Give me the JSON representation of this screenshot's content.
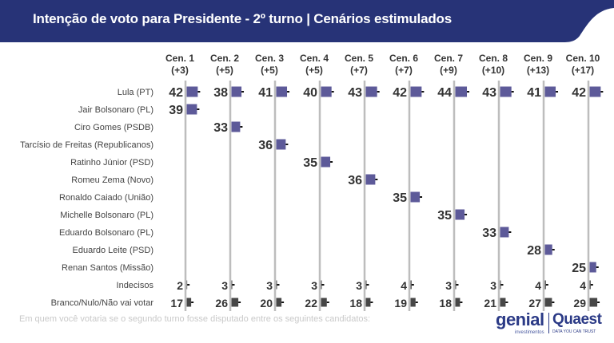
{
  "header": {
    "title": "Intenção de voto para Presidente - 2º turno | Cenários estimulados"
  },
  "footer": {
    "subtitle": "Em quem você votaria se o segundo turno fosse disputado entre os seguintes candidatos:",
    "logo_genial": "genial",
    "logo_genial_sub": "investimentos",
    "logo_quaest": "Quaest",
    "logo_quaest_sub": "DATA YOU CAN TRUST"
  },
  "colors": {
    "header": "#273377",
    "candidate_bar": "#5d5a99",
    "other_bar": "#474747",
    "gridline": "#bdbdbd"
  },
  "chart_data": {
    "type": "bar",
    "orientation": "horizontal",
    "grid": false,
    "categories": [
      "Cen. 1",
      "Cen. 2",
      "Cen. 3",
      "Cen. 4",
      "Cen. 5",
      "Cen. 6",
      "Cen. 7",
      "Cen. 8",
      "Cen. 9",
      "Cen. 10"
    ],
    "category_margins": [
      "(+3)",
      "(+5)",
      "(+5)",
      "(+5)",
      "(+7)",
      "(+7)",
      "(+9)",
      "(+10)",
      "(+13)",
      "(+17)"
    ],
    "series": [
      {
        "name": "Lula (PT)",
        "values": [
          42,
          38,
          41,
          40,
          43,
          42,
          44,
          43,
          41,
          42
        ]
      },
      {
        "name": "Jair Bolsonaro (PL)",
        "values": [
          39,
          null,
          null,
          null,
          null,
          null,
          null,
          null,
          null,
          null
        ]
      },
      {
        "name": "Ciro Gomes (PSDB)",
        "values": [
          null,
          33,
          null,
          null,
          null,
          null,
          null,
          null,
          null,
          null
        ]
      },
      {
        "name": "Tarcísio de Freitas (Republicanos)",
        "values": [
          null,
          null,
          36,
          null,
          null,
          null,
          null,
          null,
          null,
          null
        ]
      },
      {
        "name": "Ratinho Júnior (PSD)",
        "values": [
          null,
          null,
          null,
          35,
          null,
          null,
          null,
          null,
          null,
          null
        ]
      },
      {
        "name": "Romeu Zema (Novo)",
        "values": [
          null,
          null,
          null,
          null,
          36,
          null,
          null,
          null,
          null,
          null
        ]
      },
      {
        "name": "Ronaldo Caiado (União)",
        "values": [
          null,
          null,
          null,
          null,
          null,
          35,
          null,
          null,
          null,
          null
        ]
      },
      {
        "name": "Michelle Bolsonaro (PL)",
        "values": [
          null,
          null,
          null,
          null,
          null,
          null,
          35,
          null,
          null,
          null
        ]
      },
      {
        "name": "Eduardo Bolsonaro (PL)",
        "values": [
          null,
          null,
          null,
          null,
          null,
          null,
          null,
          33,
          null,
          null
        ]
      },
      {
        "name": "Eduardo Leite (PSD)",
        "values": [
          null,
          null,
          null,
          null,
          null,
          null,
          null,
          null,
          28,
          null
        ]
      },
      {
        "name": "Renan Santos (Missão)",
        "values": [
          null,
          null,
          null,
          null,
          null,
          null,
          null,
          null,
          null,
          25
        ]
      },
      {
        "name": "Indecisos",
        "values": [
          2,
          3,
          3,
          3,
          3,
          4,
          3,
          3,
          4,
          4
        ]
      },
      {
        "name": "Branco/Nulo/Não vai votar",
        "values": [
          17,
          26,
          20,
          22,
          18,
          19,
          18,
          21,
          27,
          29
        ]
      }
    ]
  }
}
